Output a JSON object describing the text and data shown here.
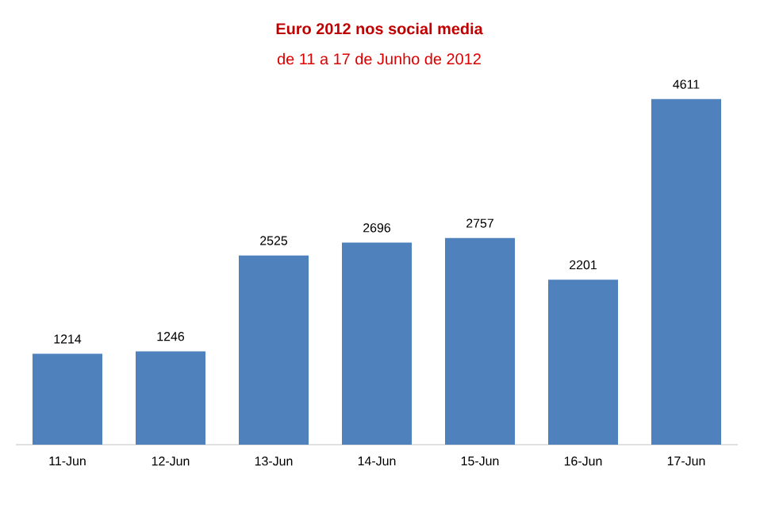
{
  "chart_data": {
    "type": "bar",
    "title": "Euro 2012 nos social media",
    "subtitle": "de 11 a 17 de Junho de 2012",
    "categories": [
      "11-Jun",
      "12-Jun",
      "13-Jun",
      "14-Jun",
      "15-Jun",
      "16-Jun",
      "17-Jun"
    ],
    "values": [
      1214,
      1246,
      2525,
      2696,
      2757,
      2201,
      4611
    ],
    "color": "#4f81bd",
    "data_labels": true
  }
}
